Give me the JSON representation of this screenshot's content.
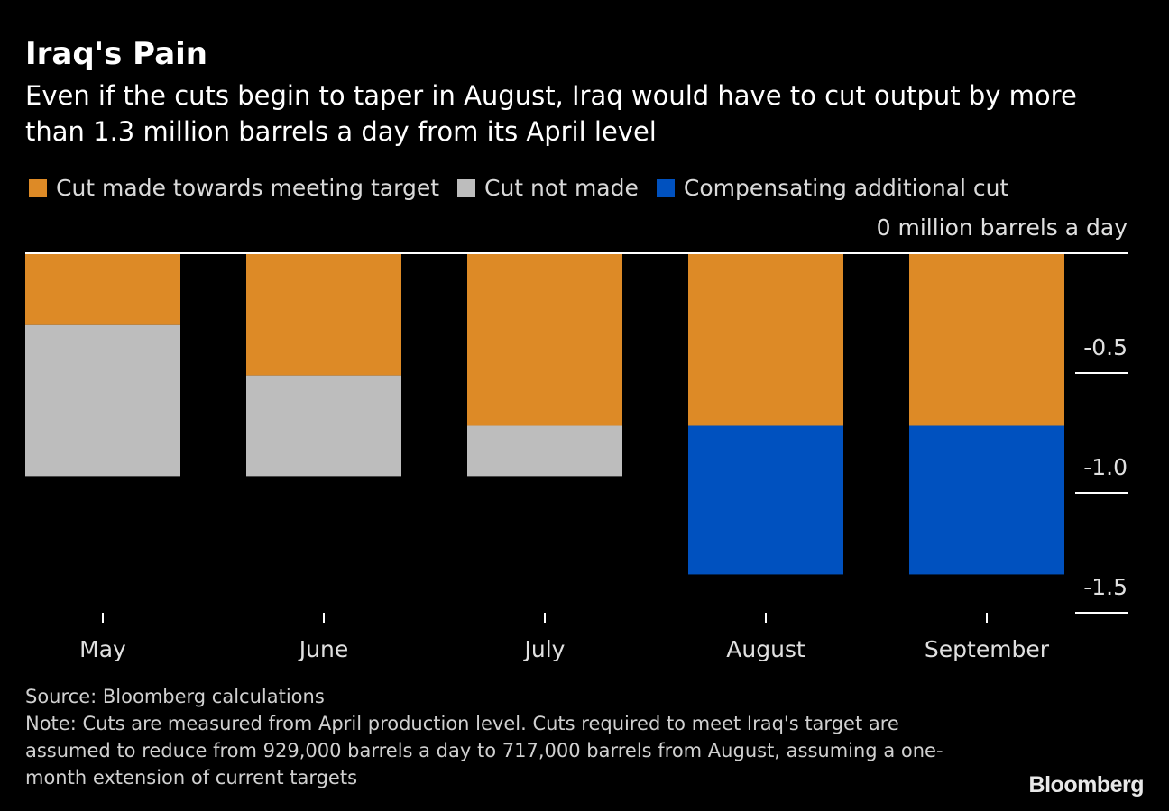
{
  "header": {
    "title": "Iraq's Pain",
    "subtitle": "Even if the cuts begin to taper in August, Iraq would have to cut output by more than 1.3 million barrels a day from its April level"
  },
  "legend": {
    "items": [
      {
        "label": "Cut made towards meeting target",
        "color": "#dd8a26"
      },
      {
        "label": "Cut not made",
        "color": "#bdbdbd"
      },
      {
        "label": "Compensating additional cut",
        "color": "#0051bf"
      }
    ]
  },
  "footer": {
    "source": "Source: Bloomberg calculations",
    "note": "Note: Cuts are measured from April production level. Cuts required to meet Iraq's target are assumed to reduce from 929,000 barrels a day to 717,000 barrels from August, assuming a one-month extension of current targets",
    "logo": "Bloomberg"
  },
  "chart_data": {
    "type": "bar",
    "stacked": true,
    "categories": [
      "May",
      "June",
      "July",
      "August",
      "September"
    ],
    "series": [
      {
        "name": "Cut made towards meeting target",
        "color": "#dd8a26",
        "values": [
          -0.3,
          -0.51,
          -0.72,
          -0.72,
          -0.72
        ]
      },
      {
        "name": "Cut not made",
        "color": "#bdbdbd",
        "values": [
          -0.63,
          -0.42,
          -0.21,
          0,
          0
        ]
      },
      {
        "name": "Compensating additional cut",
        "color": "#0051bf",
        "values": [
          0,
          0,
          0,
          -0.62,
          -0.62
        ]
      }
    ],
    "ylim": [
      -1.5,
      0
    ],
    "yticks": [
      0,
      -0.5,
      -1.0,
      -1.5
    ],
    "ytick_labels": [
      "0 million barrels a day",
      "-0.5",
      "-1.0",
      "-1.5"
    ],
    "y_axis_position": "right",
    "legend_position": "top-left",
    "grid": false
  }
}
